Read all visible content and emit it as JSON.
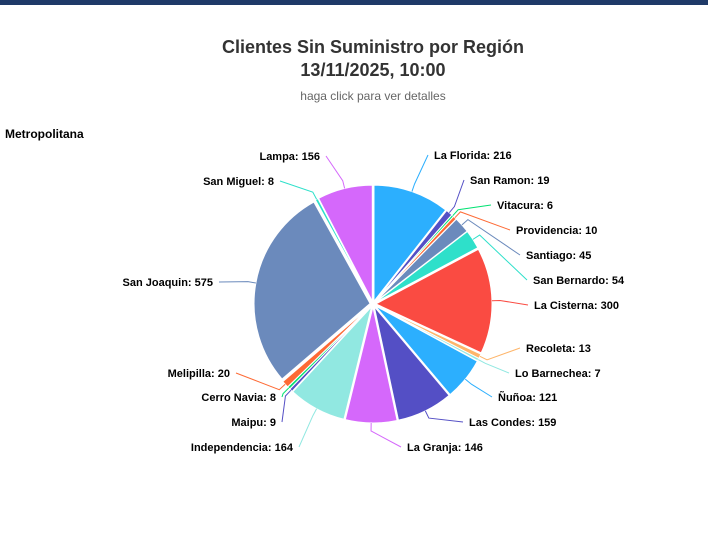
{
  "header": {
    "title_line1": "Clientes Sin Suministro por Región",
    "title_line2": "13/11/2025, 10:00",
    "subtitle": "haga click para ver detalles"
  },
  "region_label": "Metropolitana",
  "chart_data": {
    "type": "pie",
    "title": "Clientes Sin Suministro por Región 13/11/2025, 10:00",
    "subtitle": "haga click para ver detalles",
    "slices": [
      {
        "name": "La Florida",
        "value": 216,
        "color": "#2caffe"
      },
      {
        "name": "San Ramon",
        "value": 19,
        "color": "#544fc5"
      },
      {
        "name": "Vitacura",
        "value": 6,
        "color": "#00e272"
      },
      {
        "name": "Providencia",
        "value": 10,
        "color": "#fe6a35"
      },
      {
        "name": "Santiago",
        "value": 45,
        "color": "#6b8abc"
      },
      {
        "name": "San Bernardo",
        "value": 54,
        "color": "#2ee0ca"
      },
      {
        "name": "La Cisterna",
        "value": 300,
        "color": "#fa4b42"
      },
      {
        "name": "Recoleta",
        "value": 13,
        "color": "#feb56a"
      },
      {
        "name": "Lo Barnechea",
        "value": 7,
        "color": "#91e8e1"
      },
      {
        "name": "Ñuñoa",
        "value": 121,
        "color": "#2caffe"
      },
      {
        "name": "Las Condes",
        "value": 159,
        "color": "#544fc5"
      },
      {
        "name": "La Granja",
        "value": 146,
        "color": "#d568fb"
      },
      {
        "name": "Independencia",
        "value": 164,
        "color": "#91e8e1"
      },
      {
        "name": "Maipu",
        "value": 9,
        "color": "#544fc5"
      },
      {
        "name": "Cerro Navia",
        "value": 8,
        "color": "#00e272"
      },
      {
        "name": "Melipilla",
        "value": 20,
        "color": "#fe6a35"
      },
      {
        "name": "San Joaquin",
        "value": 575,
        "color": "#6b8abc"
      },
      {
        "name": "San Miguel",
        "value": 8,
        "color": "#2ee0ca"
      },
      {
        "name": "Lampa",
        "value": 156,
        "color": "#d568fb"
      }
    ]
  }
}
